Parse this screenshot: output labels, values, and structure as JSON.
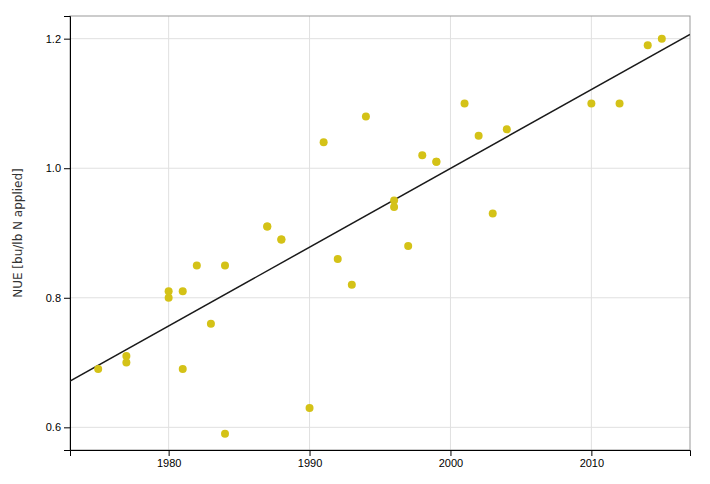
{
  "chart_data": {
    "type": "scatter",
    "ylabel": "NUE [bu/lb N applied]",
    "x": [
      1975,
      1977,
      1977,
      1980,
      1980,
      1981,
      1981,
      1982,
      1983,
      1984,
      1984,
      1987,
      1987,
      1988,
      1988,
      1990,
      1991,
      1992,
      1993,
      1994,
      1996,
      1996,
      1997,
      1998,
      1999,
      1999,
      2001,
      2002,
      2003,
      2004,
      2010,
      2012,
      2014,
      2015
    ],
    "values": [
      0.69,
      0.7,
      0.71,
      0.8,
      0.81,
      0.81,
      0.69,
      0.85,
      0.76,
      0.85,
      0.59,
      0.91,
      0.91,
      0.89,
      0.89,
      0.63,
      1.04,
      0.86,
      0.82,
      1.08,
      0.95,
      0.94,
      0.88,
      1.02,
      1.01,
      1.01,
      1.1,
      1.05,
      0.93,
      1.06,
      1.1,
      1.1,
      1.19,
      1.2
    ],
    "color": "#D4C217",
    "fit_line": {
      "type": "line",
      "x": [
        1973,
        2017
      ],
      "values": [
        0.6712,
        1.2067
      ],
      "color": "#1a1a1a"
    },
    "xlim": [
      1973,
      2017
    ],
    "ylim": [
      0.565,
      1.235
    ],
    "xticks": [
      1980,
      1990,
      2000,
      2010
    ],
    "yticks": [
      0.6,
      0.8,
      {
        "value": 1.0,
        "label": "1.0"
      },
      1.2
    ],
    "grid": true
  }
}
